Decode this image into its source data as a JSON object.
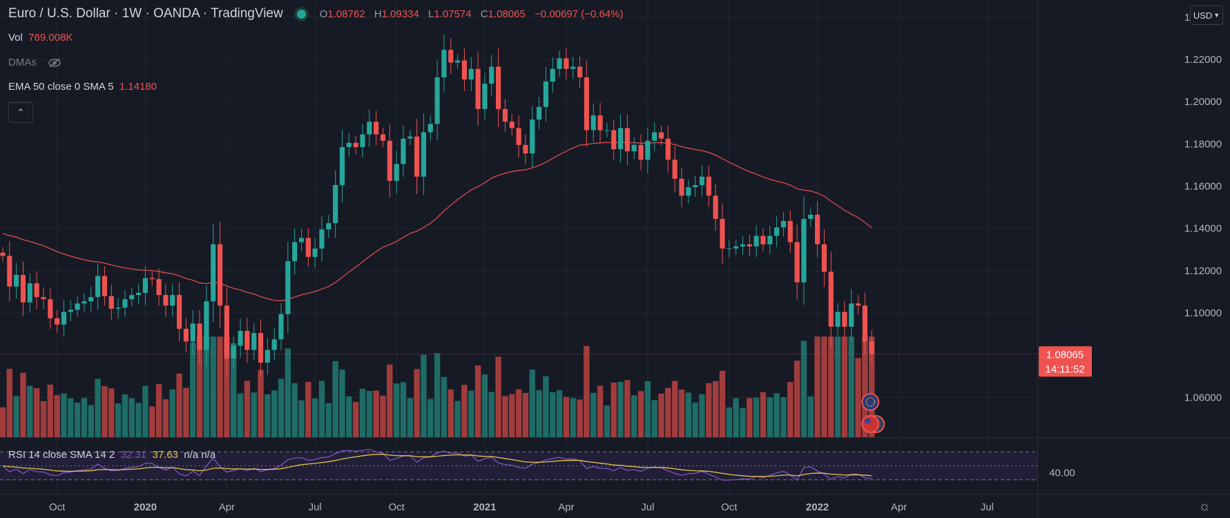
{
  "header": {
    "title": "Euro / U.S. Dollar · 1W · OANDA · TradingView",
    "o_label": "O",
    "o": "1.08762",
    "h_label": "H",
    "h": "1.09334",
    "l_label": "L",
    "l": "1.07574",
    "c_label": "C",
    "c": "1.08065",
    "change": "−0.00697 (−0.64%)"
  },
  "vol": {
    "label": "Vol",
    "value": "769.008K"
  },
  "dmas": {
    "label": "DMAs",
    "icon": "eye-off-icon"
  },
  "ema": {
    "label": "EMA 50 close 0 SMA 5",
    "value": "1.14180"
  },
  "collapse": {
    "icon": "chevron-up-icon",
    "glyph": "⌃"
  },
  "currency": {
    "label": "USD",
    "icon": "chevron-down-icon"
  },
  "price_tag": {
    "price": "1.08065",
    "countdown": "14:11:52"
  },
  "rsi": {
    "label": "RSI 14 close SMA 14 2",
    "rsi": "32.31",
    "sma": "37.63",
    "extra": "n/a n/a",
    "axis_label": "40.00"
  },
  "settings": {
    "icon": "gear-icon",
    "glyph": "☼"
  },
  "colors": {
    "bg": "#161a25",
    "up": "#26a69a",
    "down": "#ef5350",
    "vol_up": "#1f6b66",
    "vol_down": "#a13c3c",
    "ema": "#e04c4c",
    "rsi": "#7e57c2",
    "rsi_sma": "#e8c547",
    "grid": "#232733"
  },
  "chart_data": {
    "type": "candlestick",
    "symbol": "EURUSD",
    "timeframe": "1W",
    "y_ticks": [
      "1.24000",
      "1.22000",
      "1.20000",
      "1.18000",
      "1.16000",
      "1.14000",
      "1.12000",
      "1.10000",
      "1.06000"
    ],
    "ylim": [
      1.052,
      1.2445
    ],
    "x_ticks": [
      {
        "label": "Oct",
        "bar": 8,
        "bold": false
      },
      {
        "label": "2020",
        "bar": 21,
        "bold": true
      },
      {
        "label": "Apr",
        "bar": 33,
        "bold": false
      },
      {
        "label": "Jul",
        "bar": 46,
        "bold": false
      },
      {
        "label": "Oct",
        "bar": 58,
        "bold": false
      },
      {
        "label": "2021",
        "bar": 71,
        "bold": true
      },
      {
        "label": "Apr",
        "bar": 83,
        "bold": false
      },
      {
        "label": "Jul",
        "bar": 95,
        "bold": false
      },
      {
        "label": "Oct",
        "bar": 107,
        "bold": false
      },
      {
        "label": "2022",
        "bar": 120,
        "bold": true
      },
      {
        "label": "Apr",
        "bar": 132,
        "bold": false
      },
      {
        "label": "Jul",
        "bar": 145,
        "bold": false
      }
    ],
    "closes": [
      1.127,
      1.1125,
      1.118,
      1.105,
      1.114,
      1.1075,
      1.1065,
      1.0975,
      1.0945,
      1.1005,
      1.1015,
      1.1045,
      1.1055,
      1.1075,
      1.1175,
      1.108,
      1.102,
      1.1025,
      1.1065,
      1.1085,
      1.1095,
      1.1165,
      1.116,
      1.1085,
      1.1035,
      1.1085,
      1.0925,
      1.0865,
      1.095,
      1.0825,
      1.1055,
      1.1325,
      1.1035,
      1.0785,
      1.0845,
      1.0915,
      1.0825,
      1.0905,
      1.0765,
      1.0825,
      1.0875,
      1.0995,
      1.1245,
      1.1335,
      1.1355,
      1.1265,
      1.1305,
      1.1395,
      1.1425,
      1.1605,
      1.1785,
      1.1805,
      1.1785,
      1.1845,
      1.1905,
      1.1845,
      1.1815,
      1.1625,
      1.1705,
      1.1825,
      1.1835,
      1.1645,
      1.1855,
      1.1895,
      1.2115,
      1.2245,
      1.2185,
      1.2195,
      1.2105,
      1.2155,
      1.1965,
      1.2085,
      1.2165,
      1.1965,
      1.1905,
      1.1875,
      1.1795,
      1.1755,
      1.1915,
      1.1975,
      1.2095,
      1.2155,
      1.2205,
      1.2155,
      1.2165,
      1.2115,
      1.1865,
      1.1935,
      1.1865,
      1.1865,
      1.1775,
      1.1875,
      1.1765,
      1.1795,
      1.1725,
      1.1815,
      1.1855,
      1.1825,
      1.1725,
      1.1635,
      1.1555,
      1.1595,
      1.1605,
      1.1645,
      1.1555,
      1.1445,
      1.1305,
      1.1305,
      1.1315,
      1.1325,
      1.1315,
      1.1365,
      1.1325,
      1.1365,
      1.1405,
      1.1435,
      1.1335,
      1.1145,
      1.1445,
      1.1465,
      1.1325,
      1.1195,
      1.0935,
      1.1005,
      1.0935,
      1.1045,
      1.1035,
      1.0865,
      1.08065
    ],
    "opens": [
      1.1285
    ],
    "ema": {
      "label": "EMA 50",
      "last": 1.1418,
      "start": 1.138
    },
    "volume_ylim": [
      0,
      3500
    ],
    "rsi_ylim": [
      10,
      90
    ],
    "rsi_levels": [
      70,
      50,
      30
    ],
    "rsi_last": 32.31,
    "rsi_sma_last": 37.63
  }
}
